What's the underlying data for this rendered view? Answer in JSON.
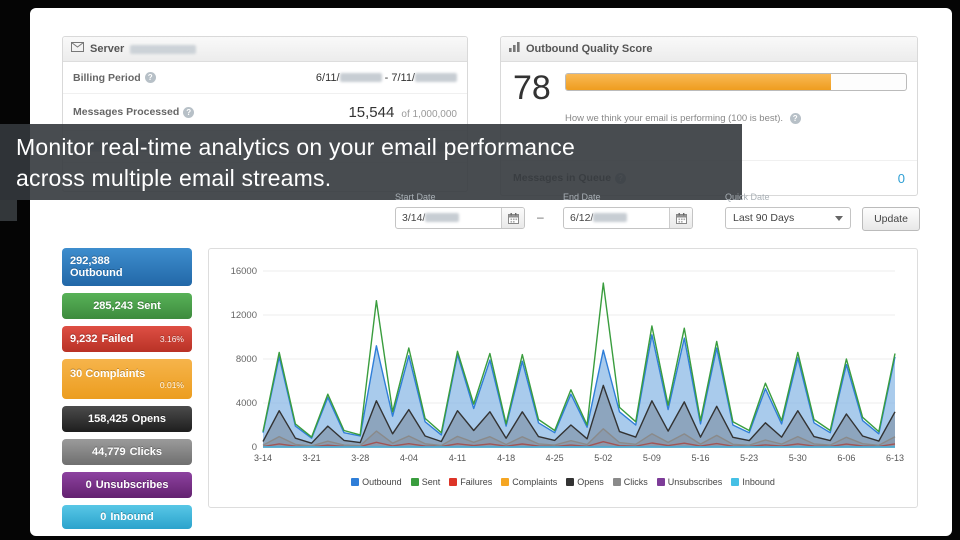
{
  "overlay": {
    "line1": "Monitor real-time analytics on your email performance",
    "line2": "across multiple email streams."
  },
  "icons": {
    "info": "?"
  },
  "server_panel": {
    "title": "Server",
    "billing_label": "Billing Period",
    "billing_start": "6/11/",
    "billing_dash": "-",
    "billing_end": "7/11/",
    "processed_label": "Messages Processed",
    "processed_value": "15,544",
    "processed_sub": "of 1,000,000"
  },
  "quality_panel": {
    "title": "Outbound Quality Score",
    "score": "78",
    "score_pct": 78,
    "caption": "How we think your email is performing (100 is best).",
    "queue_label": "Messages in Queue",
    "queue_value": "0"
  },
  "date_controls": {
    "start_label": "Start Date",
    "start_value": "3/14/",
    "separator": "–",
    "end_label": "End Date",
    "end_value": "6/12/",
    "quick_label": "Quick Date",
    "quick_value": "Last 90 Days",
    "update_label": "Update"
  },
  "stats": [
    {
      "value": "292,388",
      "label": "Outbound",
      "pct": null,
      "color": "#2f7ed8"
    },
    {
      "value": "285,243",
      "label": "Sent",
      "pct": null,
      "color": "#449d44"
    },
    {
      "value": "9,232",
      "label": "Failed",
      "pct": "3.16%",
      "color": "#c9302c"
    },
    {
      "value": "30",
      "label": "Complaints",
      "pct": "0.01%",
      "color": "#f0a32e"
    },
    {
      "value": "158,425",
      "label": "Opens",
      "pct": null,
      "color": "#333333"
    },
    {
      "value": "44,779",
      "label": "Clicks",
      "pct": null,
      "color": "#8a8a8a"
    },
    {
      "value": "0",
      "label": "Unsubscribes",
      "pct": null,
      "color": "#7d3c98"
    },
    {
      "value": "0",
      "label": "Inbound",
      "pct": null,
      "color": "#45c0e5"
    }
  ],
  "chart_data": {
    "type": "area",
    "title": "",
    "xlabel": "",
    "ylabel": "",
    "ylim": [
      0,
      16000
    ],
    "yticks": [
      0,
      4000,
      8000,
      12000,
      16000
    ],
    "grid": true,
    "legend_position": "bottom",
    "xtick_labels": [
      "3-14",
      "3-21",
      "3-28",
      "4-04",
      "4-11",
      "4-18",
      "4-25",
      "5-02",
      "5-09",
      "5-16",
      "5-23",
      "5-30",
      "6-06",
      "6-13"
    ],
    "xtick_indices": [
      0,
      3,
      6,
      9,
      12,
      15,
      18,
      21,
      24,
      27,
      30,
      33,
      36,
      39
    ],
    "series": [
      {
        "name": "Outbound",
        "color": "#2f7ed8",
        "fill": "rgba(140,185,230,0.75)",
        "values": [
          1300,
          8200,
          1900,
          800,
          4500,
          1300,
          1000,
          9200,
          2800,
          8300,
          2300,
          1100,
          8400,
          3500,
          7900,
          1900,
          7800,
          2200,
          1300,
          4800,
          1800,
          8800,
          3200,
          2000,
          10200,
          3400,
          9900,
          2100,
          9000,
          2000,
          1300,
          5300,
          2100,
          8100,
          2200,
          1300,
          7500,
          2400,
          1200,
          8200
        ]
      },
      {
        "name": "Sent",
        "color": "#3a9d3e",
        "fill": null,
        "values": [
          1400,
          8600,
          2100,
          900,
          4800,
          1500,
          1100,
          13300,
          3200,
          9000,
          2600,
          1300,
          8700,
          3900,
          8500,
          2100,
          8400,
          2500,
          1500,
          5200,
          2000,
          14900,
          3600,
          2300,
          11000,
          3800,
          10800,
          2400,
          9600,
          2300,
          1500,
          5800,
          2400,
          8600,
          2500,
          1500,
          8000,
          2700,
          1400,
          8500
        ]
      },
      {
        "name": "Failures",
        "color": "#dd3427",
        "fill": null,
        "values": [
          40,
          280,
          70,
          30,
          160,
          50,
          35,
          430,
          100,
          300,
          85,
          45,
          290,
          130,
          280,
          70,
          270,
          80,
          50,
          170,
          65,
          480,
          120,
          75,
          360,
          125,
          350,
          80,
          310,
          75,
          48,
          190,
          78,
          280,
          83,
          50,
          260,
          90,
          45,
          280
        ]
      },
      {
        "name": "Complaints",
        "color": "#f5a623",
        "fill": null,
        "values": 0
      },
      {
        "name": "Opens",
        "color": "#333333",
        "fill": "rgba(90,95,105,0.35)",
        "values": [
          500,
          3300,
          800,
          350,
          1900,
          600,
          400,
          4200,
          1200,
          3400,
          1000,
          500,
          3300,
          1500,
          3200,
          800,
          3200,
          950,
          600,
          2000,
          750,
          5600,
          1400,
          900,
          4200,
          1450,
          4100,
          900,
          3700,
          880,
          580,
          2200,
          900,
          3300,
          950,
          580,
          3000,
          1000,
          540,
          3200
        ]
      },
      {
        "name": "Clicks",
        "color": "#8a8a8a",
        "fill": "rgba(130,130,140,0.30)",
        "values": [
          150,
          950,
          240,
          100,
          530,
          170,
          120,
          1450,
          350,
          1000,
          290,
          140,
          960,
          430,
          940,
          230,
          930,
          280,
          170,
          570,
          220,
          1650,
          400,
          250,
          1200,
          420,
          1190,
          260,
          1050,
          250,
          160,
          640,
          260,
          950,
          280,
          170,
          880,
          300,
          150,
          940
        ]
      },
      {
        "name": "Unsubscribes",
        "color": "#7d3c98",
        "fill": null,
        "values": 0
      },
      {
        "name": "Inbound",
        "color": "#45c0e5",
        "fill": null,
        "values": 0
      }
    ]
  }
}
